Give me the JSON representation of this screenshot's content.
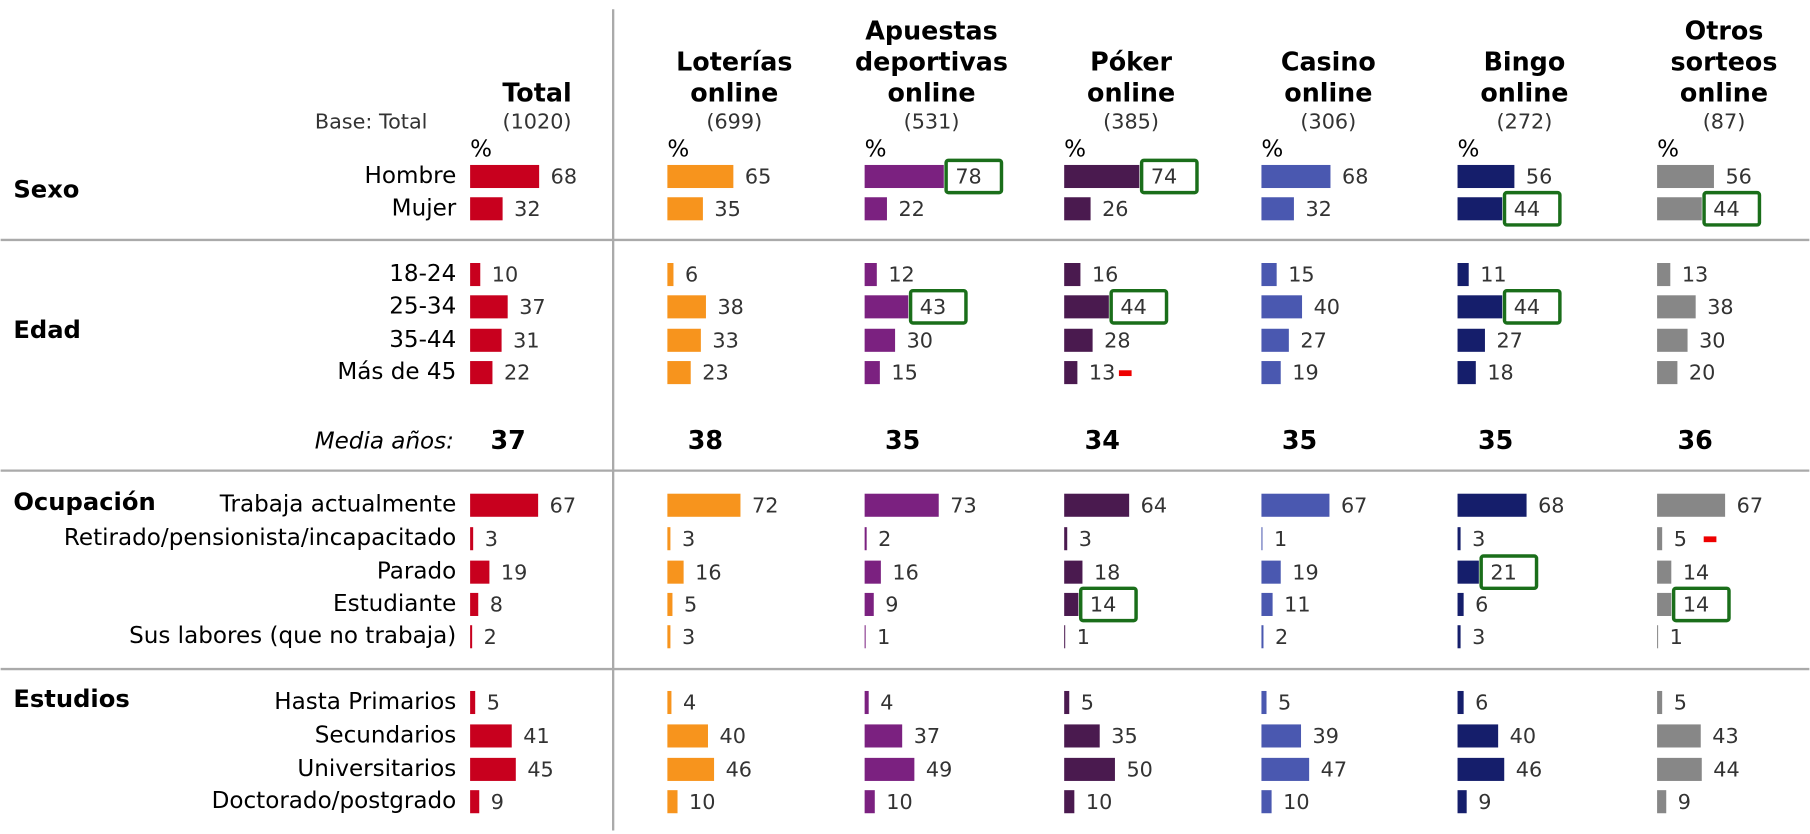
{
  "base_label": "Base: Total",
  "pct": "%",
  "mean_label": "Media años:",
  "groups": [
    {
      "name": "Sexo",
      "rows": [
        "Hombre",
        "Mujer"
      ]
    },
    {
      "name": "Edad",
      "rows": [
        "18-24",
        "25-34",
        "35-44",
        "Más de 45"
      ]
    },
    {
      "name": "Ocupación",
      "rows": [
        "Trabaja actualmente",
        "Retirado/pensionista/incapacitado",
        "Parado",
        "Estudiante",
        "Sus labores (que no trabaja)"
      ]
    },
    {
      "name": "Estudios",
      "rows": [
        "Hasta Primarios",
        "Secundarios",
        "Universitarios",
        "Doctorado/postgrado"
      ]
    }
  ],
  "columns": [
    {
      "title": [
        "Total"
      ],
      "base": "(1020)",
      "color": "#c8001e",
      "mean": 37,
      "values": [
        [
          68,
          32
        ],
        [
          10,
          37,
          31,
          22
        ],
        [
          67,
          3,
          19,
          8,
          2
        ],
        [
          5,
          41,
          45,
          9
        ]
      ],
      "highlight": [],
      "low": []
    },
    {
      "title": [
        "Loterías",
        "online"
      ],
      "base": "(699)",
      "color": "#f7941d",
      "mean": 38,
      "values": [
        [
          65,
          35
        ],
        [
          6,
          38,
          33,
          23
        ],
        [
          72,
          3,
          16,
          5,
          3
        ],
        [
          4,
          40,
          46,
          10
        ]
      ],
      "highlight": [],
      "low": []
    },
    {
      "title": [
        "Apuestas",
        "deportivas",
        "online"
      ],
      "base": "(531)",
      "color": "#7b2180",
      "mean": 35,
      "values": [
        [
          78,
          22
        ],
        [
          12,
          43,
          30,
          15
        ],
        [
          73,
          2,
          16,
          9,
          1
        ],
        [
          4,
          37,
          49,
          10
        ]
      ],
      "highlight": [
        [
          0,
          0
        ],
        [
          1,
          1
        ]
      ],
      "low": []
    },
    {
      "title": [
        "Póker",
        "online"
      ],
      "base": "(385)",
      "color": "#4a1a4f",
      "mean": 34,
      "values": [
        [
          74,
          26
        ],
        [
          16,
          44,
          28,
          13
        ],
        [
          64,
          3,
          18,
          14,
          1
        ],
        [
          5,
          35,
          50,
          10
        ]
      ],
      "highlight": [
        [
          0,
          0
        ],
        [
          1,
          1
        ],
        [
          2,
          3
        ]
      ],
      "low": [
        [
          1,
          3
        ]
      ]
    },
    {
      "title": [
        "Casino",
        "online"
      ],
      "base": "(306)",
      "color": "#4a58b0",
      "mean": 35,
      "values": [
        [
          68,
          32
        ],
        [
          15,
          40,
          27,
          19
        ],
        [
          67,
          1,
          19,
          11,
          2
        ],
        [
          5,
          39,
          47,
          10
        ]
      ],
      "highlight": [],
      "low": []
    },
    {
      "title": [
        "Bingo",
        "online"
      ],
      "base": "(272)",
      "color": "#151e6b",
      "mean": 35,
      "values": [
        [
          56,
          44
        ],
        [
          11,
          44,
          27,
          18
        ],
        [
          68,
          3,
          21,
          6,
          3
        ],
        [
          6,
          40,
          46,
          9
        ]
      ],
      "highlight": [
        [
          0,
          1
        ],
        [
          1,
          1
        ],
        [
          2,
          2
        ]
      ],
      "low": []
    },
    {
      "title": [
        "Otros",
        "sorteos",
        "online"
      ],
      "base": "(87)",
      "color": "#878787",
      "mean": 36,
      "values": [
        [
          56,
          44
        ],
        [
          13,
          38,
          30,
          20
        ],
        [
          67,
          5,
          14,
          14,
          1
        ],
        [
          5,
          43,
          44,
          9
        ]
      ],
      "highlight": [
        [
          0,
          1
        ],
        [
          2,
          3
        ]
      ],
      "low": [
        [
          2,
          1
        ]
      ]
    }
  ]
}
